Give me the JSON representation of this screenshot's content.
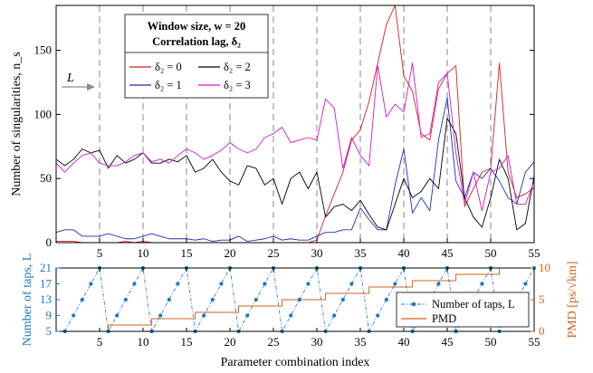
{
  "chart_data": [
    {
      "type": "line",
      "ylabel": "Number of singularities, n_s",
      "xlim": [
        0,
        55
      ],
      "ylim": [
        0,
        185
      ],
      "xticks": [
        5,
        10,
        15,
        20,
        25,
        30,
        35,
        40,
        45,
        50,
        55
      ],
      "yticks": [
        0,
        50,
        100,
        150
      ],
      "legend_title_1": "Window size, w = 20",
      "legend_title_2": "Correlation lag, δ₂",
      "annotation": "L",
      "grid_x": [
        5,
        10,
        15,
        20,
        25,
        30,
        35,
        40,
        45,
        50
      ],
      "series": [
        {
          "name": "δ₂ = 0",
          "color": "#d42020",
          "values": [
            1,
            1,
            1,
            0,
            0,
            0,
            0,
            0,
            1,
            0,
            1,
            0,
            0,
            0,
            0,
            0,
            0,
            0,
            0,
            0,
            0,
            0,
            0,
            0,
            0,
            0,
            0,
            0,
            0,
            0,
            2,
            21,
            38,
            55,
            80,
            88,
            110,
            140,
            170,
            185,
            130,
            118,
            85,
            80,
            120,
            132,
            138,
            28,
            42,
            55,
            58,
            140,
            55,
            35,
            38,
            43
          ]
        },
        {
          "name": "δ₂ = 1",
          "color": "#1c2fb8",
          "values": [
            8,
            10,
            10,
            5,
            5,
            5,
            7,
            5,
            3,
            3,
            5,
            7,
            5,
            3,
            3,
            3,
            2,
            3,
            1,
            2,
            2,
            5,
            1,
            2,
            3,
            5,
            2,
            3,
            2,
            2,
            5,
            8,
            8,
            10,
            10,
            27,
            18,
            10,
            10,
            45,
            73,
            23,
            35,
            25,
            80,
            113,
            48,
            35,
            55,
            50,
            58,
            48,
            35,
            30,
            55,
            63
          ]
        },
        {
          "name": "δ₂ = 2",
          "color": "#000000",
          "values": [
            65,
            60,
            65,
            73,
            70,
            72,
            58,
            68,
            62,
            65,
            70,
            62,
            62,
            65,
            63,
            68,
            55,
            58,
            65,
            55,
            48,
            45,
            60,
            58,
            45,
            50,
            30,
            50,
            55,
            42,
            55,
            20,
            28,
            30,
            25,
            33,
            22,
            12,
            10,
            30,
            50,
            35,
            40,
            50,
            42,
            97,
            85,
            35,
            20,
            12,
            35,
            65,
            50,
            10,
            15,
            52
          ]
        },
        {
          "name": "δ₂ = 3",
          "color": "#d416d4",
          "values": [
            62,
            55,
            62,
            68,
            70,
            62,
            60,
            60,
            63,
            68,
            70,
            63,
            65,
            62,
            68,
            73,
            70,
            65,
            68,
            72,
            78,
            73,
            70,
            73,
            82,
            85,
            90,
            78,
            80,
            82,
            80,
            112,
            105,
            58,
            82,
            68,
            60,
            138,
            98,
            108,
            102,
            140,
            82,
            85,
            125,
            132,
            70,
            30,
            55,
            25,
            55,
            58,
            68,
            30,
            30,
            48
          ]
        }
      ]
    },
    {
      "type": "line",
      "xlabel": "Parameter combination index",
      "xlim": [
        0,
        55
      ],
      "xticks": [
        5,
        10,
        15,
        20,
        25,
        30,
        35,
        40,
        45,
        50,
        55
      ],
      "y_left": {
        "label": "Number of taps, L",
        "ylim": [
          5,
          21
        ],
        "yticks": [
          5,
          9,
          13,
          17,
          21
        ]
      },
      "y_right": {
        "label": "PMD [ps/√km]",
        "ylim": [
          0,
          10
        ],
        "yticks": [
          0,
          5,
          10
        ]
      },
      "series": [
        {
          "name": "Number of taps, L",
          "color": "#1a78c2",
          "axis": "left",
          "points_x": [
            1,
            2,
            3,
            4,
            5,
            6,
            7,
            8,
            9,
            10,
            11,
            12,
            13,
            14,
            15,
            16,
            17,
            18,
            19,
            20,
            21,
            22,
            23,
            24,
            25,
            26,
            27,
            28,
            29,
            30,
            31,
            32,
            33,
            34,
            35,
            36,
            37,
            38,
            39,
            40,
            41,
            42,
            43,
            44,
            45,
            46,
            47,
            48,
            49,
            50,
            51,
            52,
            53,
            54,
            55
          ],
          "points_y": [
            5,
            9,
            13,
            17,
            21,
            5,
            9,
            13,
            17,
            21,
            5,
            9,
            13,
            17,
            21,
            5,
            9,
            13,
            17,
            21,
            5,
            9,
            13,
            17,
            21,
            5,
            9,
            13,
            17,
            21,
            5,
            9,
            13,
            17,
            21,
            5,
            9,
            13,
            17,
            21,
            5,
            9,
            13,
            17,
            21,
            5,
            9,
            13,
            17,
            21,
            5,
            9,
            13,
            17,
            21
          ]
        },
        {
          "name": "PMD",
          "color": "#d4631c",
          "axis": "right",
          "x": [
            0,
            6,
            6,
            11,
            11,
            16,
            16,
            21,
            21,
            26,
            26,
            31,
            31,
            36,
            36,
            41,
            41,
            46,
            46,
            51,
            51,
            55
          ],
          "y": [
            0,
            0,
            1,
            1,
            2,
            2,
            3,
            3,
            4,
            4,
            5,
            5,
            6,
            6,
            7,
            7,
            8,
            8,
            9,
            9,
            10,
            10
          ]
        }
      ]
    }
  ],
  "legend_top": [
    "δ₂ = 0",
    "δ₂ = 2",
    "δ₂ = 1",
    "δ₂ = 3"
  ],
  "legend_bottom": [
    "Number of taps, L",
    "PMD"
  ]
}
